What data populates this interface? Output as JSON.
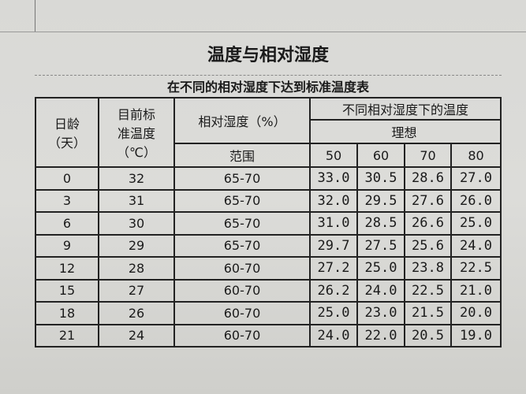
{
  "title": "温度与相对湿度",
  "subtitle": "在不同的相对湿度下达到标准温度表",
  "headers": {
    "age": "日龄（天）",
    "age_line1": "日龄",
    "age_line2": "（天）",
    "std_temp_line1": "目前标",
    "std_temp_line2": "准温度",
    "std_temp_line3": "（℃）",
    "humidity": "相对湿度（%）",
    "range": "范围",
    "temp_group": "不同相对湿度下的温度",
    "ideal": "理想",
    "humidity_levels": [
      "50",
      "60",
      "70",
      "80"
    ]
  },
  "rows": [
    {
      "age": "0",
      "std": "32",
      "range": "65-70",
      "t": [
        "33.0",
        "30.5",
        "28.6",
        "27.0"
      ]
    },
    {
      "age": "3",
      "std": "31",
      "range": "65-70",
      "t": [
        "32.0",
        "29.5",
        "27.6",
        "26.0"
      ]
    },
    {
      "age": "6",
      "std": "30",
      "range": "65-70",
      "t": [
        "31.0",
        "28.5",
        "26.6",
        "25.0"
      ]
    },
    {
      "age": "9",
      "std": "29",
      "range": "65-70",
      "t": [
        "29.7",
        "27.5",
        "25.6",
        "24.0"
      ]
    },
    {
      "age": "12",
      "std": "28",
      "range": "60-70",
      "t": [
        "27.2",
        "25.0",
        "23.8",
        "22.5"
      ]
    },
    {
      "age": "15",
      "std": "27",
      "range": "60-70",
      "t": [
        "26.2",
        "24.0",
        "22.5",
        "21.0"
      ]
    },
    {
      "age": "18",
      "std": "26",
      "range": "60-70",
      "t": [
        "25.0",
        "23.0",
        "21.5",
        "20.0"
      ]
    },
    {
      "age": "21",
      "std": "24",
      "range": "60-70",
      "t": [
        "24.0",
        "22.0",
        "20.5",
        "19.0"
      ]
    }
  ]
}
